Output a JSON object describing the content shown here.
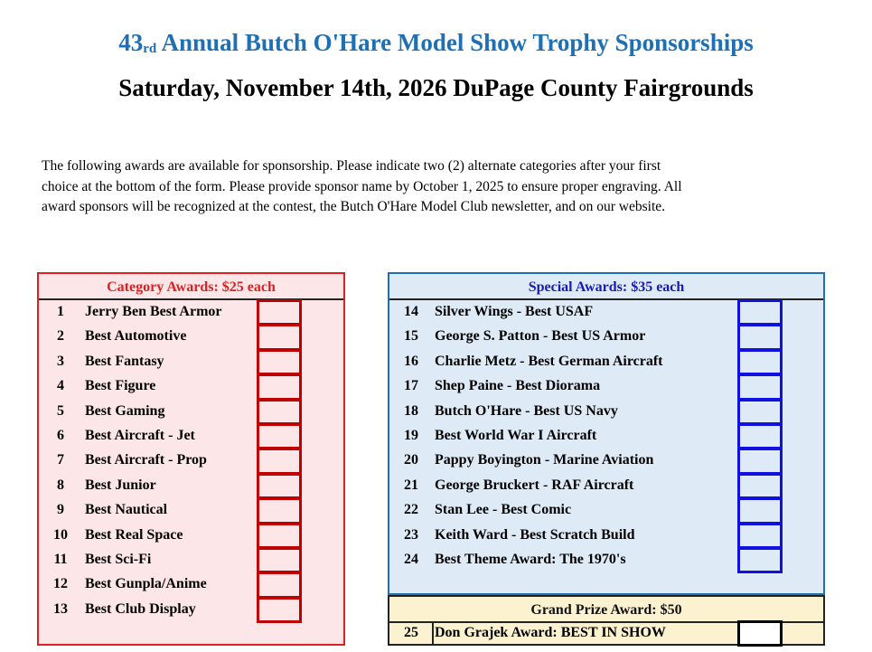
{
  "header": {
    "title_number": "43",
    "title_suffix": "rd",
    "title_rest": "Annual Butch O'Hare Model Show Trophy Sponsorships",
    "subtitle": "Saturday, November 14th, 2026 DuPage County Fairgrounds"
  },
  "intro": [
    "The following awards are available for sponsorship. Please indicate two (2) alternate categories after your first",
    "choice at the bottom of the form. Please provide sponsor name by October 1, 2025 to ensure proper engraving. All",
    "award sponsors will be recognized at the contest, the Butch O'Hare Model Club newsletter, and on our website."
  ],
  "category_awards": {
    "heading": "Category Awards:  $25 each",
    "items": [
      {
        "number": 1,
        "name": "Jerry Ben Best Armor"
      },
      {
        "number": 2,
        "name": "Best Automotive"
      },
      {
        "number": 3,
        "name": "Best Fantasy"
      },
      {
        "number": 4,
        "name": "Best Figure"
      },
      {
        "number": 5,
        "name": "Best Gaming"
      },
      {
        "number": 6,
        "name": "Best Aircraft - Jet"
      },
      {
        "number": 7,
        "name": "Best Aircraft - Prop"
      },
      {
        "number": 8,
        "name": "Best Junior"
      },
      {
        "number": 9,
        "name": "Best Nautical"
      },
      {
        "number": 10,
        "name": "Best Real Space"
      },
      {
        "number": 11,
        "name": "Best Sci-Fi"
      },
      {
        "number": 12,
        "name": "Best Gunpla/Anime"
      },
      {
        "number": 13,
        "name": "Best Club Display"
      }
    ]
  },
  "special_awards": {
    "heading": "Special  Awards:  $35 each",
    "items": [
      {
        "number": 14,
        "name": "Silver Wings - Best USAF"
      },
      {
        "number": 15,
        "name": "George S. Patton - Best US Armor"
      },
      {
        "number": 16,
        "name": "Charlie Metz - Best German Aircraft"
      },
      {
        "number": 17,
        "name": "Shep Paine - Best Diorama"
      },
      {
        "number": 18,
        "name": "Butch O'Hare - Best US Navy"
      },
      {
        "number": 19,
        "name": "Best World War I Aircraft"
      },
      {
        "number": 20,
        "name": "Pappy Boyington - Marine Aviation"
      },
      {
        "number": 21,
        "name": "George Bruckert - RAF Aircraft"
      },
      {
        "number": 22,
        "name": "Stan Lee - Best Comic"
      },
      {
        "number": 23,
        "name": "Keith Ward - Best Scratch Build"
      },
      {
        "number": 24,
        "name": "Best Theme Award: The 1970's"
      }
    ]
  },
  "grand_prize": {
    "heading": "Grand Prize Award:  $50",
    "items": [
      {
        "number": 25,
        "name": "Don Grajek Award: BEST IN SHOW"
      }
    ]
  }
}
